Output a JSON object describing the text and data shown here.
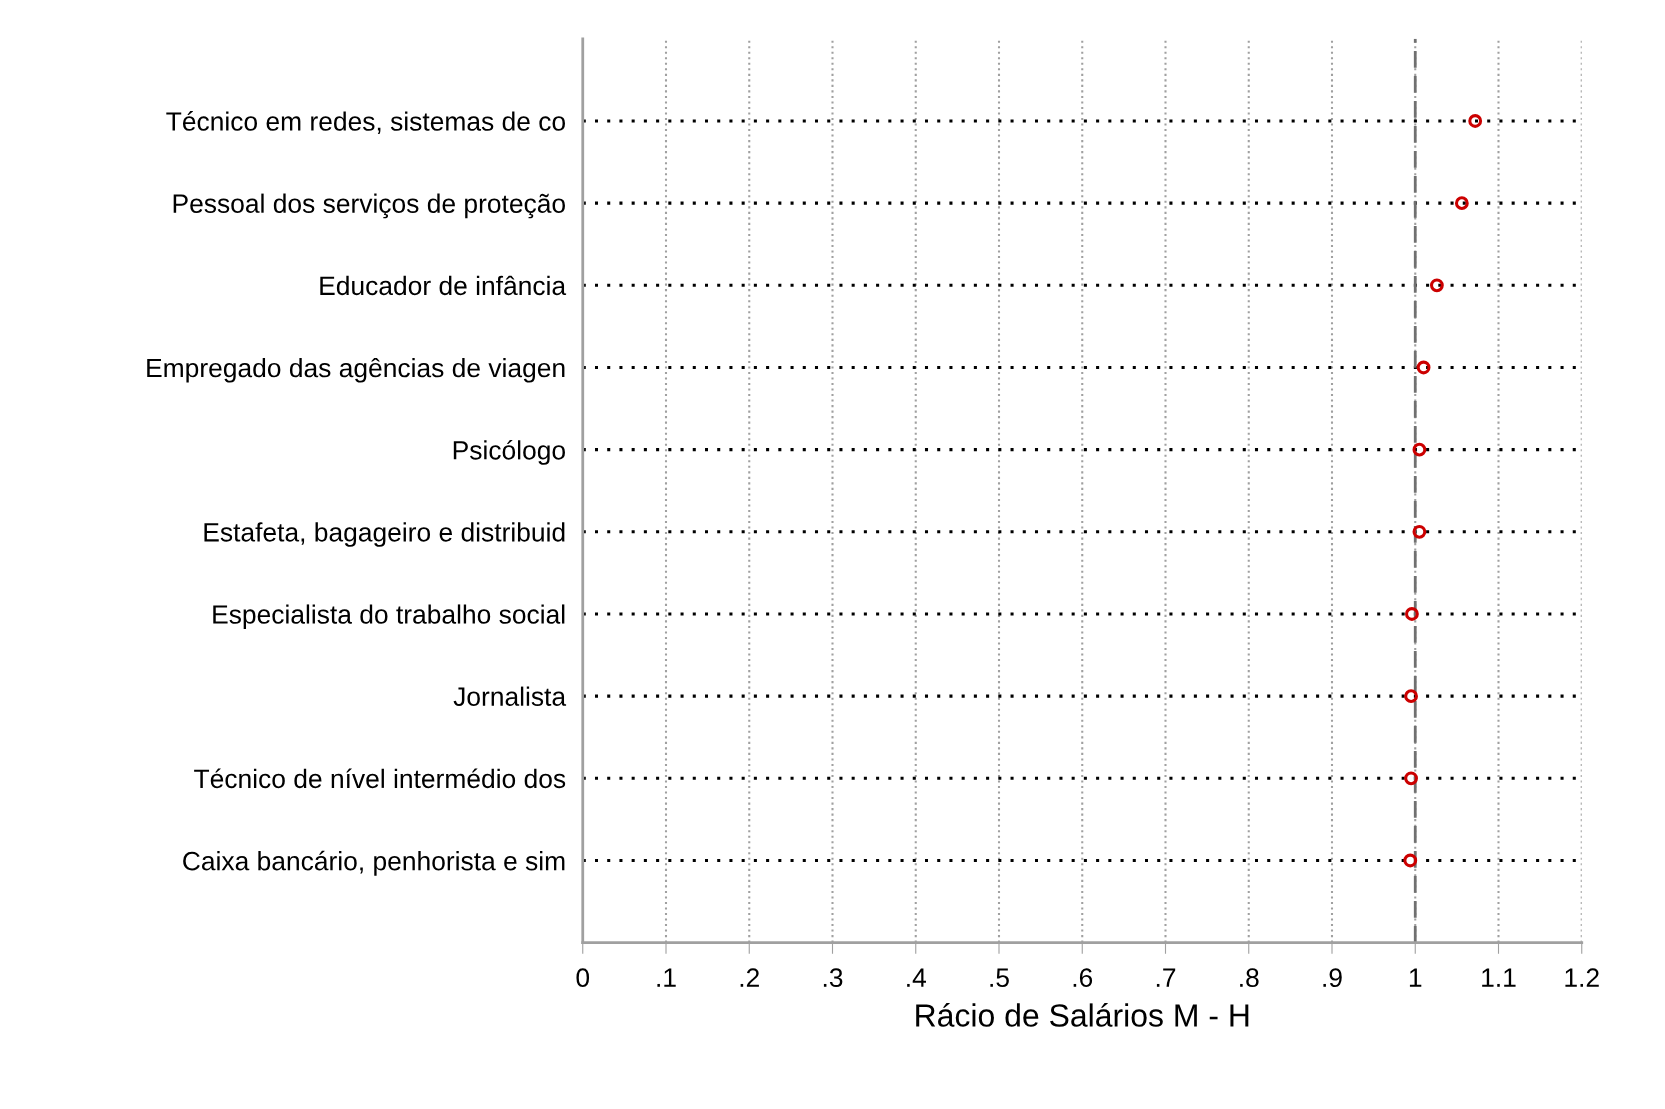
{
  "chart_data": {
    "type": "scatter",
    "orientation": "horizontal",
    "xlabel": "Rácio de Salários M - H",
    "categories": [
      "Técnico em redes, sistemas de co",
      "Pessoal dos serviços de proteção",
      "Educador de infância",
      "Empregado das agências de viagen",
      "Psicólogo",
      "Estafeta, bagageiro e distribuid",
      "Especialista do trabalho social",
      "Jornalista",
      "Técnico de nível intermédio dos",
      "Caixa bancário, penhorista e sim"
    ],
    "series": [
      {
        "color": "#cc0000",
        "values": [
          1.072,
          1.056,
          1.026,
          1.01,
          1.005,
          1.005,
          0.996,
          0.995,
          0.995,
          0.994
        ]
      }
    ],
    "xlim": [
      0,
      1.2
    ],
    "xticks": [
      0,
      {
        "value": 0.1,
        "label": ".1"
      },
      {
        "value": 0.2,
        "label": ".2"
      },
      {
        "value": 0.3,
        "label": ".3"
      },
      {
        "value": 0.4,
        "label": ".4"
      },
      {
        "value": 0.5,
        "label": ".5"
      },
      {
        "value": 0.6,
        "label": ".6"
      },
      {
        "value": 0.7,
        "label": ".7"
      },
      {
        "value": 0.8,
        "label": ".8"
      },
      {
        "value": 0.9,
        "label": ".9"
      },
      1,
      1.1,
      1.2
    ],
    "ref_lines": [
      {
        "axis": "x",
        "value": 1,
        "color": "#707070",
        "line_style": "dashed"
      }
    ],
    "grid": true,
    "marker": "circle",
    "legend": false
  }
}
